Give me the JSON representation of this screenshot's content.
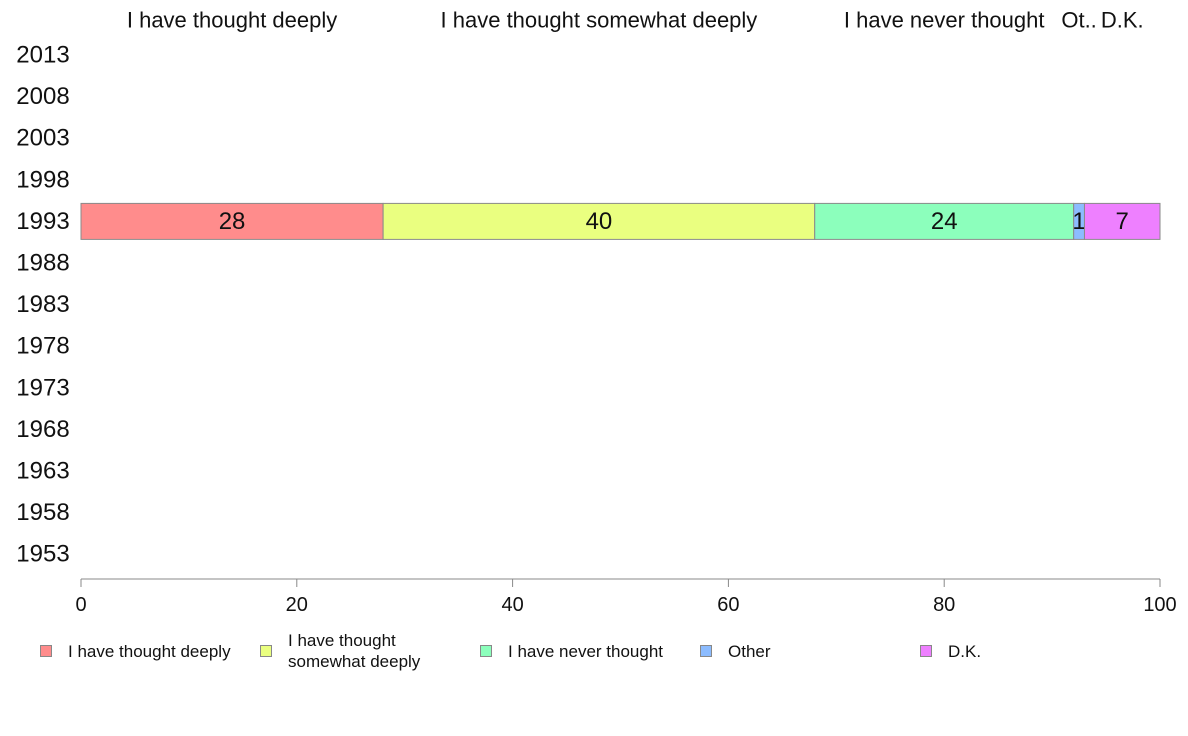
{
  "chart_data": {
    "type": "bar",
    "orientation": "horizontal",
    "stacked": true,
    "categories": [
      "2013",
      "2008",
      "2003",
      "1998",
      "1993",
      "1988",
      "1983",
      "1978",
      "1973",
      "1968",
      "1963",
      "1958",
      "1953"
    ],
    "series": [
      {
        "name": "I have thought deeply",
        "header": "I have thought deeply",
        "color": "#ff8c8c",
        "values": [
          null,
          null,
          null,
          null,
          28,
          null,
          null,
          null,
          null,
          null,
          null,
          null,
          null
        ],
        "labels": [
          "",
          "",
          "",
          "",
          "28",
          "",
          "",
          "",
          "",
          "",
          "",
          "",
          ""
        ]
      },
      {
        "name": "I have thought somewhat deeply",
        "header": "I have thought somewhat deeply",
        "color": "#eaff80",
        "values": [
          null,
          null,
          null,
          null,
          40,
          null,
          null,
          null,
          null,
          null,
          null,
          null,
          null
        ],
        "labels": [
          "",
          "",
          "",
          "",
          "40",
          "",
          "",
          "",
          "",
          "",
          "",
          "",
          ""
        ]
      },
      {
        "name": "I have never thought",
        "header": "I have never thought",
        "color": "#8cffbc",
        "values": [
          null,
          null,
          null,
          null,
          24,
          null,
          null,
          null,
          null,
          null,
          null,
          null,
          null
        ],
        "labels": [
          "",
          "",
          "",
          "",
          "24",
          "",
          "",
          "",
          "",
          "",
          "",
          "",
          ""
        ]
      },
      {
        "name": "Other",
        "header": "Ot..",
        "color": "#8cbcff",
        "values": [
          null,
          null,
          null,
          null,
          1,
          null,
          null,
          null,
          null,
          null,
          null,
          null,
          null
        ],
        "labels": [
          "",
          "",
          "",
          "",
          "1",
          "",
          "",
          "",
          "",
          "",
          "",
          "",
          ""
        ]
      },
      {
        "name": "D.K.",
        "header": "D.K.",
        "color": "#ee80ff",
        "values": [
          null,
          null,
          null,
          null,
          7,
          null,
          null,
          null,
          null,
          null,
          null,
          null,
          null
        ],
        "labels": [
          "",
          "",
          "",
          "",
          "7",
          "",
          "",
          "",
          "",
          "",
          "",
          "",
          ""
        ]
      }
    ],
    "xlim": [
      0,
      100
    ],
    "xticks": [
      "0",
      "20",
      "40",
      "60",
      "80",
      "100"
    ],
    "grid": false,
    "legend_position": "bottom"
  },
  "legend": {
    "items": [
      {
        "lines": [
          "I have thought deeply"
        ],
        "color": "#ff8c8c"
      },
      {
        "lines": [
          "I have thought",
          "somewhat deeply"
        ],
        "color": "#eaff80"
      },
      {
        "lines": [
          "I have never thought"
        ],
        "color": "#8cffbc"
      },
      {
        "lines": [
          "Other"
        ],
        "color": "#8cbcff"
      },
      {
        "lines": [
          "D.K."
        ],
        "color": "#ee80ff"
      }
    ]
  }
}
